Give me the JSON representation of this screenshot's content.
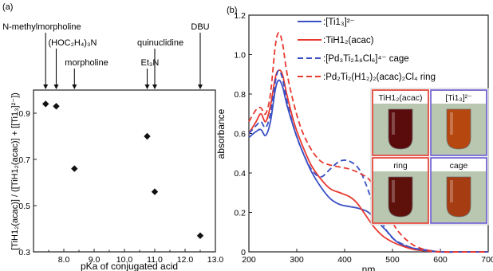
{
  "chart_data": [
    {
      "type": "scatter",
      "panel_label": "(a)",
      "xlabel": "pKa of conjugated acid",
      "ylabel": "[TiH1₂(acac)] / ([TiH1₂(acac)] + [[Ti1₃]²⁻])",
      "xlim": [
        7.0,
        13.0
      ],
      "ylim": [
        0.3,
        1.0
      ],
      "xticks": [
        "8.0",
        "9.0",
        "10.0",
        "11.0",
        "12.0",
        "13.0"
      ],
      "yticks": [
        "0.3",
        "0.5",
        "0.7",
        "0.9"
      ],
      "grid": false,
      "points": [
        {
          "x": 7.4,
          "y": 0.94
        },
        {
          "x": 7.75,
          "y": 0.93
        },
        {
          "x": 8.35,
          "y": 0.66
        },
        {
          "x": 10.75,
          "y": 0.8
        },
        {
          "x": 11.0,
          "y": 0.56
        },
        {
          "x": 12.5,
          "y": 0.37
        }
      ],
      "annotations": [
        {
          "text": "N-methylmorpholine",
          "x": 7.4
        },
        {
          "text": "(HOC₂H₄)₃N",
          "x": 7.75
        },
        {
          "text": "morpholine",
          "x": 8.35
        },
        {
          "text": "quinuclidine",
          "x": 11.0
        },
        {
          "text": "Et₃N",
          "x": 10.75
        },
        {
          "text": "DBU",
          "x": 12.5
        }
      ]
    },
    {
      "type": "line",
      "panel_label": "(b)",
      "xlabel": "nm",
      "ylabel": "absorbance",
      "xlim": [
        200,
        700
      ],
      "ylim": [
        0,
        1.2
      ],
      "xticks": [
        "200",
        "300",
        "400",
        "500",
        "600",
        "700"
      ],
      "yticks": [
        "0",
        "0.2",
        "0.4",
        "0.6",
        "0.8",
        "1.0",
        "1.2"
      ],
      "grid": false,
      "legend_position": "top-right",
      "series": [
        {
          "name": ":[Ti1₃]²⁻",
          "color": "#3a4fc4",
          "dash": false,
          "x": [
            200,
            215,
            225,
            235,
            245,
            255,
            262,
            270,
            280,
            295,
            310,
            330,
            350,
            370,
            390,
            410,
            430,
            450,
            470,
            490,
            510,
            540,
            570,
            600,
            650,
            700
          ],
          "y": [
            0.58,
            0.61,
            0.62,
            0.59,
            0.66,
            0.82,
            0.87,
            0.84,
            0.74,
            0.62,
            0.52,
            0.41,
            0.33,
            0.27,
            0.24,
            0.23,
            0.22,
            0.2,
            0.15,
            0.1,
            0.05,
            0.02,
            0.01,
            0.0,
            0.0,
            0.0
          ]
        },
        {
          "name": ":TiH1₂(acac)",
          "color": "#e8392f",
          "dash": false,
          "x": [
            200,
            215,
            225,
            235,
            245,
            255,
            262,
            270,
            280,
            295,
            310,
            330,
            350,
            370,
            390,
            410,
            425,
            440,
            460,
            480,
            500,
            520,
            550,
            600,
            650,
            700
          ],
          "y": [
            0.6,
            0.66,
            0.7,
            0.66,
            0.74,
            0.88,
            0.92,
            0.9,
            0.79,
            0.65,
            0.55,
            0.44,
            0.37,
            0.32,
            0.3,
            0.28,
            0.25,
            0.2,
            0.13,
            0.08,
            0.05,
            0.03,
            0.01,
            0.0,
            0.0,
            0.0
          ]
        },
        {
          "name": ":[Pd₃Ti₂1₆Cl₆]⁴⁻ cage",
          "color": "#3a4fc4",
          "dash": true,
          "x": [
            200,
            215,
            225,
            235,
            245,
            255,
            262,
            270,
            280,
            295,
            310,
            330,
            350,
            370,
            390,
            410,
            430,
            445,
            460,
            480,
            500,
            530,
            560,
            600,
            650,
            700
          ],
          "y": [
            0.6,
            0.64,
            0.66,
            0.63,
            0.7,
            0.86,
            0.92,
            0.88,
            0.76,
            0.62,
            0.52,
            0.42,
            0.38,
            0.42,
            0.46,
            0.46,
            0.42,
            0.34,
            0.24,
            0.14,
            0.07,
            0.03,
            0.01,
            0.0,
            0.0,
            0.0
          ]
        },
        {
          "name": ":Pd₂Ti₂(H1₂)₂(acac)₂Cl₄ ring",
          "color": "#e8392f",
          "dash": true,
          "x": [
            200,
            215,
            225,
            235,
            245,
            255,
            262,
            270,
            280,
            295,
            310,
            330,
            350,
            370,
            390,
            410,
            430,
            450,
            470,
            490,
            510,
            540,
            570,
            600,
            650,
            700
          ],
          "y": [
            0.66,
            0.72,
            0.73,
            0.7,
            0.8,
            1.04,
            1.11,
            1.06,
            0.9,
            0.74,
            0.62,
            0.52,
            0.46,
            0.44,
            0.43,
            0.42,
            0.4,
            0.37,
            0.3,
            0.2,
            0.11,
            0.04,
            0.01,
            0.0,
            0.0,
            0.0
          ]
        }
      ],
      "inset_photos": [
        {
          "label": "TiH1₂(acac)",
          "frame": "#e8392f",
          "liquid": "#5a0b0b"
        },
        {
          "label": "[Ti1₃]²⁻",
          "frame": "#6a5bd6",
          "liquid": "#b5470f"
        },
        {
          "label": "ring",
          "frame": "#e8392f",
          "liquid": "#5e100b"
        },
        {
          "label": "cage",
          "frame": "#6a5bd6",
          "liquid": "#a63c12"
        }
      ]
    }
  ]
}
